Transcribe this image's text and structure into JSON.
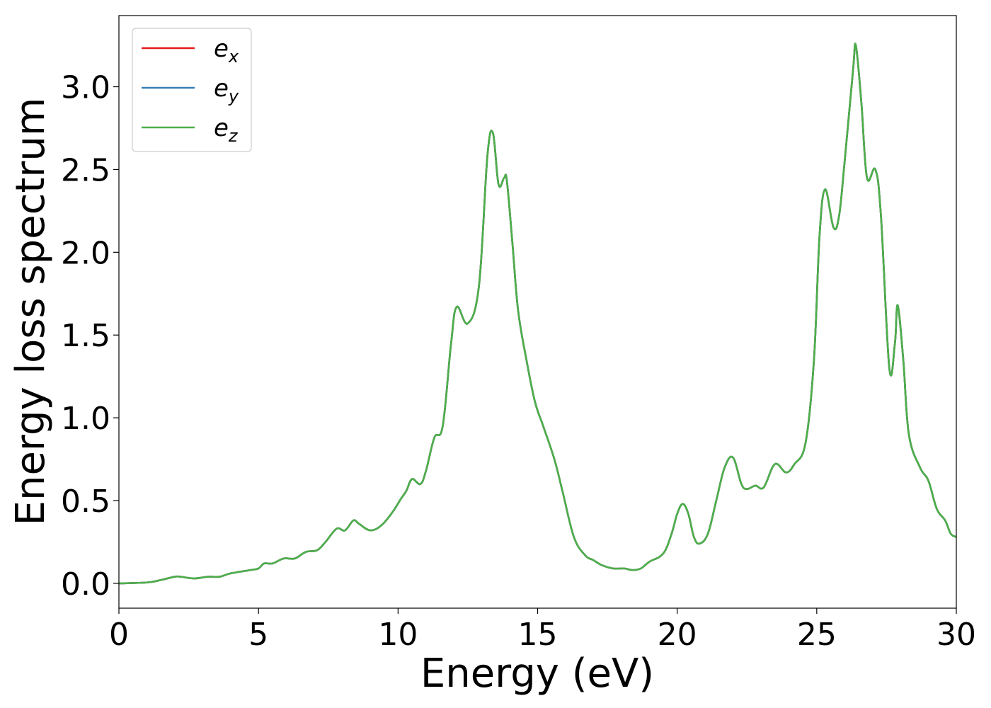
{
  "chart_data": {
    "type": "line",
    "xlabel": "Energy (eV)",
    "ylabel": "Energy loss spectrum",
    "xlim": [
      0,
      30
    ],
    "ylim": [
      -0.15,
      3.43
    ],
    "xticks": [
      0,
      5,
      10,
      15,
      20,
      25,
      30
    ],
    "yticks": [
      0.0,
      0.5,
      1.0,
      1.5,
      2.0,
      2.5,
      3.0
    ],
    "xtick_labels": [
      "0",
      "5",
      "10",
      "15",
      "20",
      "25",
      "30"
    ],
    "ytick_labels": [
      "0.0",
      "0.5",
      "1.0",
      "1.5",
      "2.0",
      "2.5",
      "3.0"
    ],
    "grid": false,
    "legend_position": "top-left",
    "series": [
      {
        "name": "e",
        "subscript": "x",
        "color": "#e41a1c"
      },
      {
        "name": "e",
        "subscript": "y",
        "color": "#377eb8"
      },
      {
        "name": "e",
        "subscript": "z",
        "color": "#4daf4a"
      }
    ],
    "x": [
      0,
      1.0,
      1.5,
      2.0,
      2.2,
      2.7,
      3.2,
      3.6,
      4.0,
      4.7,
      5.0,
      5.2,
      5.5,
      5.9,
      6.3,
      6.7,
      7.1,
      7.4,
      7.8,
      8.1,
      8.4,
      8.6,
      9.0,
      9.4,
      9.8,
      10.1,
      10.3,
      10.5,
      10.8,
      11.0,
      11.3,
      11.6,
      11.9,
      12.1,
      12.5,
      12.9,
      13.2,
      13.4,
      13.6,
      13.8,
      13.9,
      14.1,
      14.3,
      14.6,
      14.9,
      15.2,
      15.6,
      15.9,
      16.3,
      16.7,
      17.0,
      17.3,
      17.7,
      18.1,
      18.4,
      18.7,
      19.0,
      19.5,
      19.8,
      20.0,
      20.2,
      20.4,
      20.6,
      20.8,
      21.1,
      21.4,
      21.7,
      22.0,
      22.3,
      22.5,
      22.8,
      23.1,
      23.5,
      23.9,
      24.2,
      24.6,
      24.9,
      25.1,
      25.3,
      25.6,
      25.8,
      26.0,
      26.3,
      26.4,
      26.6,
      26.8,
      27.1,
      27.3,
      27.6,
      27.8,
      27.9,
      28.1,
      28.3,
      28.7,
      29.0,
      29.3,
      29.6,
      29.8,
      30.0
    ],
    "y": [
      0.0,
      0.005,
      0.02,
      0.04,
      0.04,
      0.03,
      0.04,
      0.04,
      0.06,
      0.08,
      0.09,
      0.12,
      0.12,
      0.15,
      0.15,
      0.19,
      0.2,
      0.25,
      0.33,
      0.32,
      0.38,
      0.36,
      0.32,
      0.35,
      0.43,
      0.51,
      0.56,
      0.63,
      0.6,
      0.68,
      0.88,
      0.95,
      1.45,
      1.67,
      1.57,
      1.8,
      2.58,
      2.72,
      2.41,
      2.45,
      2.43,
      2.05,
      1.65,
      1.35,
      1.1,
      0.95,
      0.75,
      0.55,
      0.28,
      0.17,
      0.14,
      0.11,
      0.09,
      0.09,
      0.08,
      0.09,
      0.13,
      0.18,
      0.3,
      0.42,
      0.48,
      0.42,
      0.28,
      0.24,
      0.3,
      0.5,
      0.7,
      0.76,
      0.6,
      0.57,
      0.59,
      0.58,
      0.72,
      0.67,
      0.72,
      0.85,
      1.35,
      2.1,
      2.38,
      2.15,
      2.22,
      2.55,
      3.1,
      3.25,
      2.9,
      2.45,
      2.5,
      2.22,
      1.3,
      1.45,
      1.68,
      1.35,
      0.9,
      0.7,
      0.62,
      0.45,
      0.38,
      0.3,
      0.28
    ]
  }
}
